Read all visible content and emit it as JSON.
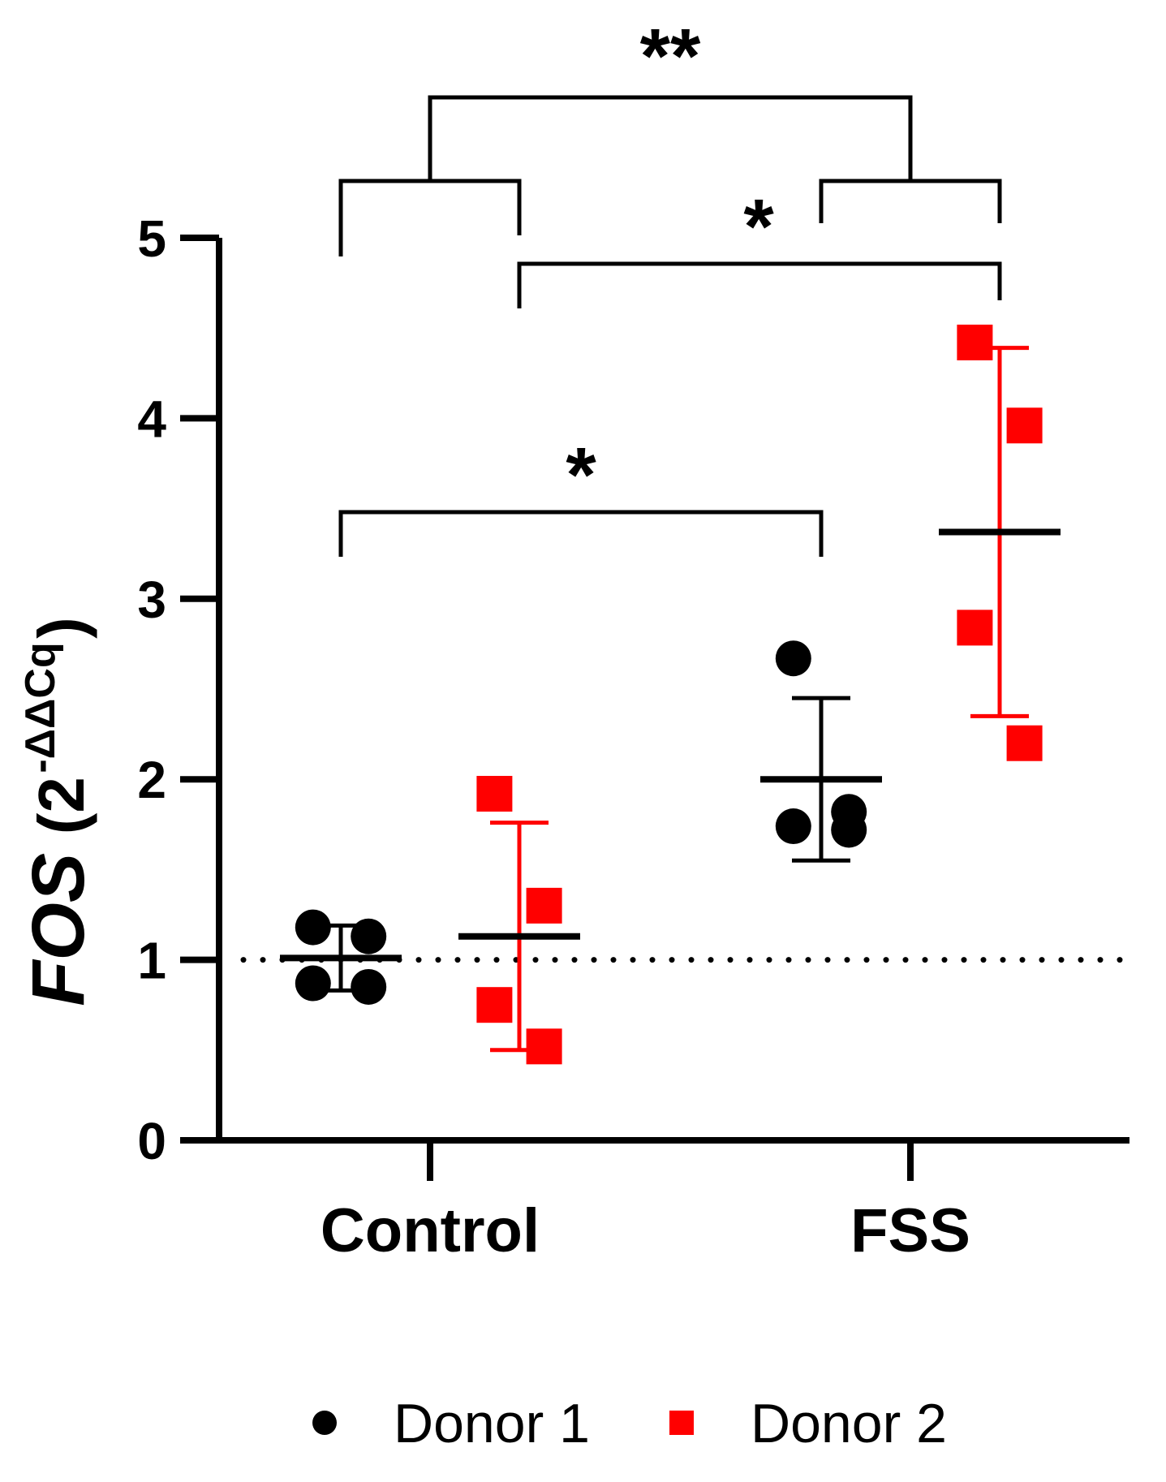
{
  "chart_data": {
    "type": "scatter",
    "title": "",
    "ylabel": "FOS (2^-ΔΔCq)",
    "ylabel_gene": "FOS",
    "ylabel_open": "(2",
    "ylabel_exp": "-ΔΔCq",
    "ylabel_close": ")",
    "ylim": [
      0,
      5
    ],
    "yticks": [
      0,
      1,
      2,
      3,
      4,
      5
    ],
    "ytick_labels": [
      "0",
      "1",
      "2",
      "3",
      "4",
      "5"
    ],
    "categories": [
      "Control",
      "FSS"
    ],
    "reference_line": 1,
    "series": [
      {
        "name": "Donor 1",
        "marker": "circle",
        "color": "#000000",
        "groups": [
          {
            "category": "Control",
            "points": [
              1.18,
              1.13,
              0.87,
              0.85
            ],
            "mean": 1.01,
            "sd_low": 0.83,
            "sd_high": 1.19
          },
          {
            "category": "FSS",
            "points": [
              2.67,
              1.82,
              1.74,
              1.72
            ],
            "mean": 2.0,
            "sd_low": 1.55,
            "sd_high": 2.45
          }
        ]
      },
      {
        "name": "Donor 2",
        "marker": "square",
        "color": "#ff0000",
        "groups": [
          {
            "category": "Control",
            "points": [
              1.92,
              1.3,
              0.75,
              0.52
            ],
            "mean": 1.13,
            "sd_low": 0.5,
            "sd_high": 1.76
          },
          {
            "category": "FSS",
            "points": [
              4.42,
              3.96,
              2.84,
              2.2
            ],
            "mean": 3.37,
            "sd_low": 2.35,
            "sd_high": 4.39
          }
        ]
      }
    ],
    "comparisons": [
      {
        "label": "*",
        "from": "Donor 1 Control",
        "to": "Donor 1 FSS"
      },
      {
        "label": "*",
        "from": "Donor 2 Control",
        "to": "Donor 2 FSS"
      },
      {
        "label": "**",
        "from": "Control",
        "to": "FSS"
      }
    ],
    "legend": [
      "Donor 1",
      "Donor 2"
    ],
    "legend_position": "bottom"
  }
}
